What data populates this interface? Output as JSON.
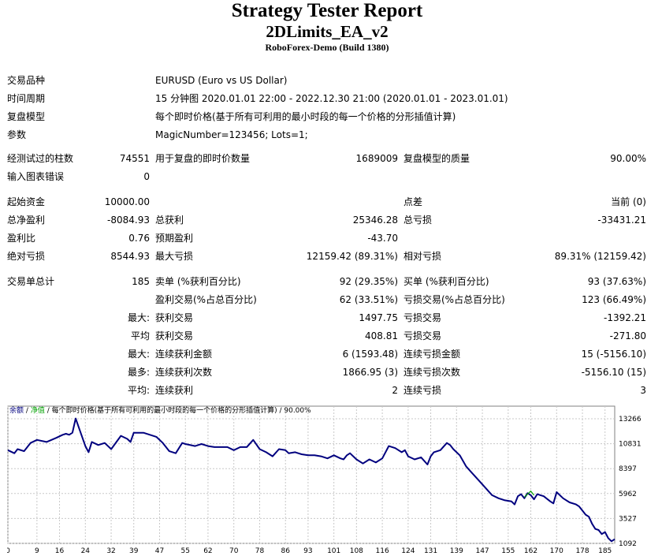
{
  "header": {
    "title": "Strategy Tester Report",
    "ea_name": "2DLimits_EA_v2",
    "server": "RoboForex-Demo (Build 1380)"
  },
  "info": {
    "symbol_label": "交易品种",
    "symbol_value": "EURUSD (Euro vs US Dollar)",
    "period_label": "时间周期",
    "period_value": "15 分钟图 2020.01.01 22:00 - 2022.12.30 21:00 (2020.01.01 - 2023.01.01)",
    "model_label": "复盘模型",
    "model_value": "每个即时价格(基于所有可利用的最小时段的每一个价格的分形插值计算)",
    "params_label": "参数",
    "params_value": "MagicNumber=123456; Lots=1;"
  },
  "quality": {
    "bars_label": "经测试过的柱数",
    "bars_value": "74551",
    "ticks_label": "用于复盘的即时价数量",
    "ticks_value": "1689009",
    "quality_label": "复盘模型的质量",
    "quality_value": "90.00%",
    "errors_label": "输入图表错误",
    "errors_value": "0"
  },
  "money": {
    "deposit_label": "起始资金",
    "deposit_value": "10000.00",
    "spread_label": "点差",
    "spread_value": "当前 (0)",
    "net_label": "总净盈利",
    "net_value": "-8084.93",
    "gross_profit_label": "总获利",
    "gross_profit_value": "25346.28",
    "gross_loss_label": "总亏损",
    "gross_loss_value": "-33431.21",
    "pf_label": "盈利比",
    "pf_value": "0.76",
    "payoff_label": "预期盈利",
    "payoff_value": "-43.70",
    "abs_dd_label": "绝对亏损",
    "abs_dd_value": "8544.93",
    "max_dd_label": "最大亏损",
    "max_dd_value": "12159.42 (89.31%)",
    "rel_dd_label": "相对亏损",
    "rel_dd_value": "89.31% (12159.42)"
  },
  "trades": {
    "total_label": "交易单总计",
    "total_value": "185",
    "short_label": "卖单 (%获利百分比)",
    "short_value": "92 (29.35%)",
    "long_label": "买单 (%获利百分比)",
    "long_value": "93 (37.63%)",
    "profit_trades_label": "盈利交易(%占总百分比)",
    "profit_trades_value": "62 (33.51%)",
    "loss_trades_label": "亏损交易(%占总百分比)",
    "loss_trades_value": "123 (66.49%)",
    "largest_prefix": "最大:",
    "largest_profit_label": "获利交易",
    "largest_profit_value": "1497.75",
    "largest_loss_label": "亏损交易",
    "largest_loss_value": "-1392.21",
    "average_prefix": "平均",
    "average_profit_label": "获利交易",
    "average_profit_value": "408.81",
    "average_loss_label": "亏损交易",
    "average_loss_value": "-271.80",
    "max_prefix": "最大:",
    "max_cons_wins_label": "连续获利金额",
    "max_cons_wins_value": "6 (1593.48)",
    "max_cons_losses_label": "连续亏损金额",
    "max_cons_losses_value": "15 (-5156.10)",
    "maximal_prefix": "最多:",
    "maximal_cons_profit_label": "连续获利次数",
    "maximal_cons_profit_value": "1866.95 (3)",
    "maximal_cons_loss_label": "连续亏损次数",
    "maximal_cons_loss_value": "-5156.10 (15)",
    "avg_cons_prefix": "平均:",
    "avg_cons_wins_label": "连续获利",
    "avg_cons_wins_value": "2",
    "avg_cons_losses_label": "连续亏损",
    "avg_cons_losses_value": "3"
  },
  "chart_data": {
    "type": "line",
    "legend_balance": "余额",
    "legend_sep": "/",
    "legend_equity": "净值",
    "legend_rest": "/ 每个即时价格(基于所有可利用的最小时段的每一个价格的分形插值计算) / 90.00%",
    "ylim": [
      1092,
      14500
    ],
    "y_ticks": [
      13266,
      10831,
      8397,
      5962,
      3527,
      1092
    ],
    "xlim": [
      0,
      188
    ],
    "x_ticks": [
      0,
      9,
      16,
      24,
      32,
      39,
      47,
      55,
      62,
      70,
      78,
      86,
      93,
      101,
      108,
      116,
      124,
      131,
      139,
      147,
      155,
      162,
      170,
      178,
      185
    ],
    "balance_color": "#00007f",
    "equity_color": "#00a000",
    "series": [
      {
        "x": [
          0,
          2,
          3,
          5,
          7,
          9,
          12,
          15,
          17,
          18,
          19,
          20,
          21,
          22,
          23,
          24,
          25,
          26,
          28,
          30,
          32,
          35,
          37,
          38,
          39,
          42,
          44,
          46,
          48,
          50,
          52,
          54,
          55,
          58,
          60,
          62,
          64,
          66,
          68,
          70,
          72,
          74,
          76,
          78,
          80,
          82,
          84,
          86,
          87,
          89,
          91,
          93,
          95,
          97,
          99,
          101,
          103,
          104,
          105,
          106,
          108,
          110,
          112,
          114,
          116,
          118,
          120,
          122,
          123,
          124,
          126,
          128,
          130,
          131,
          132,
          134,
          136,
          137,
          138,
          140,
          142,
          144,
          146,
          148,
          150,
          152,
          154,
          156,
          157,
          158,
          159,
          160,
          161,
          162,
          163,
          164,
          165,
          166,
          168,
          169,
          170,
          172,
          174,
          176,
          177,
          178,
          179,
          180,
          181,
          182,
          183,
          184,
          185,
          186,
          187,
          188
        ],
        "y": [
          10200,
          9900,
          10300,
          10100,
          10900,
          11200,
          11000,
          11400,
          11700,
          11800,
          11700,
          11900,
          13300,
          12400,
          11500,
          10600,
          10000,
          11000,
          10700,
          10900,
          10300,
          11600,
          11300,
          11000,
          11900,
          11900,
          11700,
          11500,
          10900,
          10100,
          9900,
          10900,
          10800,
          10600,
          10800,
          10600,
          10500,
          10500,
          10500,
          10200,
          10500,
          10500,
          11200,
          10300,
          10000,
          9600,
          10300,
          10200,
          9900,
          10000,
          9800,
          9700,
          9700,
          9600,
          9400,
          9700,
          9400,
          9300,
          9700,
          9900,
          9300,
          8900,
          9300,
          9000,
          9400,
          10600,
          10400,
          10000,
          10200,
          9600,
          9300,
          9500,
          8800,
          9600,
          10000,
          10200,
          10900,
          10700,
          10300,
          9700,
          8600,
          7900,
          7200,
          6500,
          5800,
          5500,
          5300,
          5200,
          4900,
          5700,
          5900,
          5500,
          6000,
          5800,
          5400,
          5900,
          5800,
          5700,
          5200,
          5000,
          6100,
          5500,
          5100,
          4900,
          4700,
          4300,
          3900,
          3700,
          3000,
          2500,
          2400,
          2000,
          2200,
          1600,
          1300,
          1500
        ]
      },
      {
        "x": [
          160,
          161,
          162,
          163
        ],
        "y": [
          5600,
          5900,
          6200,
          5800
        ]
      }
    ]
  }
}
